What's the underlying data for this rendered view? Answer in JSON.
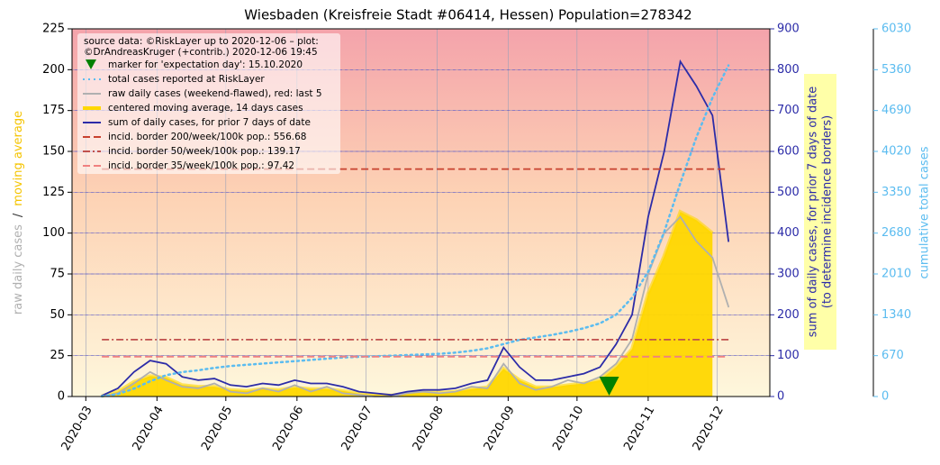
{
  "chart_data": {
    "type": "line",
    "title": "Wiesbaden (Kreisfreie Stadt #06414, Hessen) Population=278342",
    "legend_header": [
      "source data: ©RiskLayer up to 2020-12-06 – plot:",
      "©DrAndreasKruger (+contrib.) 2020-12-06 19:45"
    ],
    "y_label_parts": [
      {
        "text": "raw daily cases",
        "color": "#b0b0b0"
      },
      {
        "text": "/",
        "color": "#333333"
      },
      {
        "text": "moving average",
        "color": "#f5c400"
      }
    ],
    "y2_label": [
      "sum of daily cases, for prior 7 days of date",
      "(to determine incidence borders)"
    ],
    "y3_label": "cumulative total cases",
    "x": [
      "2020-03-08",
      "2020-03-15",
      "2020-03-22",
      "2020-03-29",
      "2020-04-05",
      "2020-04-12",
      "2020-04-19",
      "2020-04-26",
      "2020-05-03",
      "2020-05-10",
      "2020-05-17",
      "2020-05-24",
      "2020-05-31",
      "2020-06-07",
      "2020-06-14",
      "2020-06-21",
      "2020-06-28",
      "2020-07-05",
      "2020-07-12",
      "2020-07-19",
      "2020-07-26",
      "2020-08-02",
      "2020-08-09",
      "2020-08-16",
      "2020-08-23",
      "2020-08-30",
      "2020-09-06",
      "2020-09-13",
      "2020-09-20",
      "2020-09-27",
      "2020-10-04",
      "2020-10-11",
      "2020-10-18",
      "2020-10-25",
      "2020-11-01",
      "2020-11-08",
      "2020-11-15",
      "2020-11-22",
      "2020-11-29",
      "2020-12-06"
    ],
    "xlim": [
      "2020-02-24",
      "2020-12-24"
    ],
    "xticks": [
      "2020-03",
      "2020-04",
      "2020-05",
      "2020-06",
      "2020-07",
      "2020-08",
      "2020-09",
      "2020-10",
      "2020-11",
      "2020-12"
    ],
    "ylim": [
      0,
      225
    ],
    "yticks": [
      0,
      25,
      50,
      75,
      100,
      125,
      150,
      175,
      200,
      225
    ],
    "y2lim": [
      0,
      900
    ],
    "y2ticks": [
      0,
      100,
      200,
      300,
      400,
      500,
      600,
      700,
      800,
      900
    ],
    "y3lim": [
      0,
      6030
    ],
    "y3ticks": [
      0,
      670,
      1340,
      2010,
      2680,
      3350,
      4020,
      4690,
      5360,
      6030
    ],
    "grid": true,
    "markers": [
      {
        "name": "marker for 'expectation day': 15.10.2020",
        "x": "2020-10-15",
        "color": "#008000"
      }
    ],
    "series": [
      {
        "name": "total cases reported at RiskLayer",
        "color": "#5bbcf0",
        "style": "dotted",
        "axis": "y3",
        "values": [
          5,
          40,
          130,
          250,
          350,
          400,
          430,
          470,
          500,
          520,
          540,
          560,
          580,
          600,
          620,
          640,
          650,
          660,
          670,
          680,
          690,
          700,
          720,
          750,
          790,
          860,
          930,
          970,
          1010,
          1060,
          1120,
          1200,
          1340,
          1620,
          2050,
          2700,
          3500,
          4250,
          4900,
          5430
        ]
      },
      {
        "name": "raw daily cases (weekend-flawed), red: last 5",
        "color": "#b0b0b0",
        "style": "solid",
        "axis": "y",
        "values": [
          0,
          2,
          8,
          15,
          10,
          6,
          5,
          8,
          3,
          2,
          5,
          3,
          7,
          3,
          6,
          2,
          1,
          0,
          0,
          2,
          3,
          2,
          3,
          6,
          5,
          20,
          8,
          4,
          6,
          10,
          8,
          12,
          20,
          35,
          75,
          100,
          110,
          95,
          85,
          55
        ]
      },
      {
        "name": "centered moving average, 14 days cases",
        "color": "#ffd700",
        "style": "fill",
        "axis": "y",
        "values": [
          0.3,
          3,
          9,
          12.5,
          11.5,
          7,
          6,
          6,
          4,
          3.5,
          4.5,
          4,
          5.5,
          4.5,
          4.5,
          3.5,
          1.7,
          1.1,
          0.6,
          1.7,
          2.3,
          2.3,
          2.9,
          4.6,
          5.7,
          17,
          10,
          5.7,
          5.7,
          7,
          8,
          10,
          18,
          29,
          63,
          86,
          113,
          108,
          100,
          null
        ]
      },
      {
        "name": "sum of daily cases, for prior 7 days of date",
        "color": "#2c2ca8",
        "style": "solid",
        "axis": "y2",
        "values": [
          2,
          20,
          60,
          88,
          80,
          48,
          40,
          44,
          28,
          24,
          32,
          28,
          40,
          32,
          32,
          24,
          12,
          8,
          4,
          12,
          16,
          16,
          20,
          32,
          40,
          120,
          72,
          40,
          40,
          48,
          56,
          72,
          128,
          200,
          440,
          600,
          820,
          760,
          688,
          380
        ]
      }
    ],
    "hlines": [
      {
        "name": "incid. border 200/week/100k pop.: 556.68",
        "value": 556.68,
        "color": "#c8412f",
        "style": "dashed",
        "axis": "y2"
      },
      {
        "name": "incid. border 50/week/100k pop.: 139.17",
        "value": 139.17,
        "color": "#c0504d",
        "style": "dashdot",
        "axis": "y2"
      },
      {
        "name": "incid. border 35/week/100k pop.: 97.42",
        "value": 97.42,
        "color": "#f08080",
        "style": "dashed",
        "axis": "y2"
      }
    ]
  }
}
